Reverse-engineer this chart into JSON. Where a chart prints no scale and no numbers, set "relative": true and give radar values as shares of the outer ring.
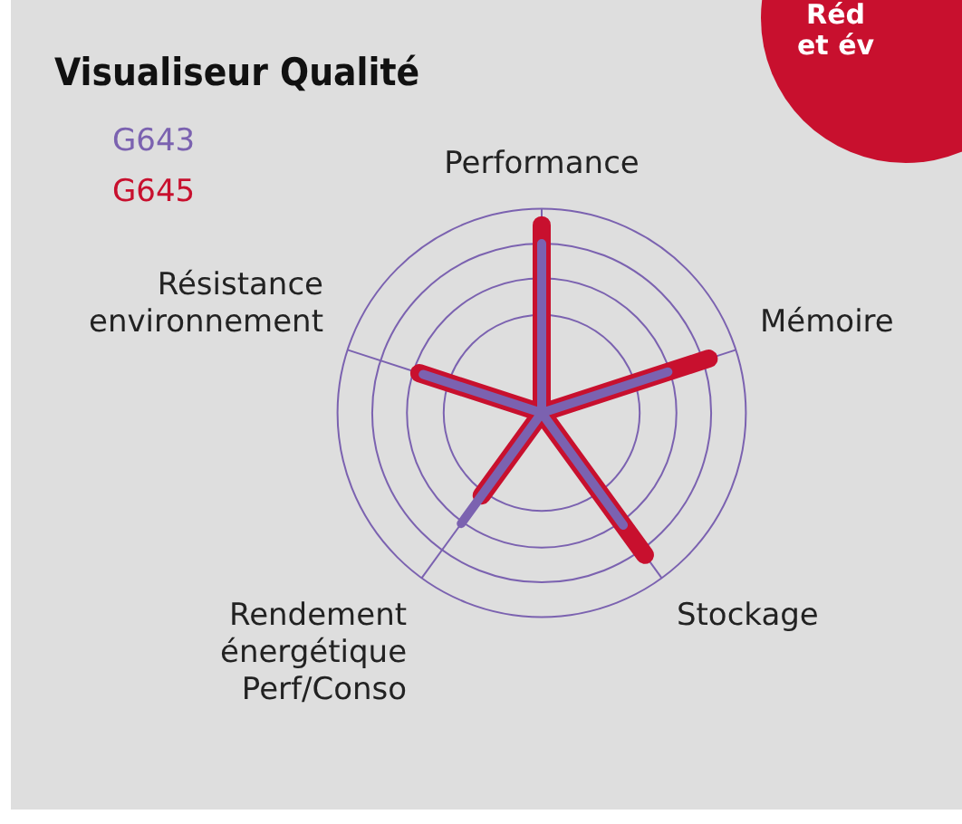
{
  "chart_data": {
    "type": "radar",
    "title": "Visualiseur Qualité",
    "relative": true,
    "legend": "top left",
    "grid": true,
    "categories": [
      "Performance",
      "Mémoire",
      "Stockage",
      "Rendement énergétique Perf/Conso",
      "Résistance environnement"
    ],
    "series": [
      {
        "name": "G643",
        "color": "#7b62b0",
        "values": [
          0.83,
          0.65,
          0.68,
          0.67,
          0.61
        ]
      },
      {
        "name": "G645",
        "color": "#c8102e",
        "values": [
          0.92,
          0.86,
          0.86,
          0.5,
          0.63
        ]
      }
    ],
    "annotations": [
      "Réd\net év"
    ]
  }
}
